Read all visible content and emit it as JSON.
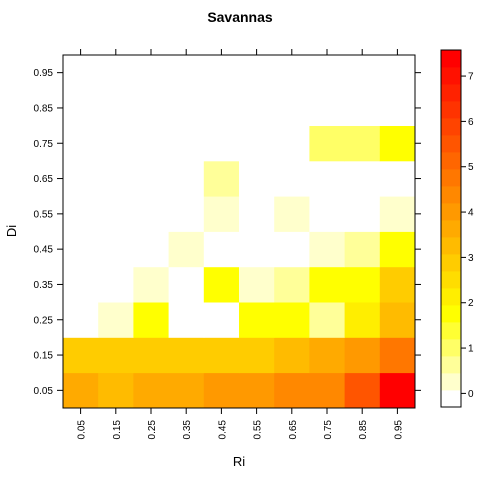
{
  "chart_data": {
    "type": "heatmap",
    "title": "Savannas",
    "xlabel": "Ri",
    "ylabel": "Di",
    "x": [
      0.05,
      0.15,
      0.25,
      0.35,
      0.45,
      0.55,
      0.65,
      0.75,
      0.85,
      0.95
    ],
    "y": [
      0.05,
      0.15,
      0.25,
      0.35,
      0.45,
      0.55,
      0.65,
      0.75,
      0.85,
      0.95
    ],
    "x_tick_labels": [
      "0.05",
      "0.15",
      "0.25",
      "0.35",
      "0.45",
      "0.55",
      "0.65",
      "0.75",
      "0.85",
      "0.95"
    ],
    "y_tick_labels": [
      "0.05",
      "0.15",
      "0.25",
      "0.35",
      "0.45",
      "0.55",
      "0.65",
      "0.75",
      "0.85",
      "0.95"
    ],
    "xlim": [
      0.0,
      1.0
    ],
    "ylim": [
      0.0,
      1.0
    ],
    "z": [
      [
        3.8,
        3.4,
        3.8,
        3.8,
        4.1,
        4.1,
        4.5,
        4.5,
        5.5,
        7.2
      ],
      [
        2.7,
        2.7,
        2.7,
        2.7,
        3.0,
        3.0,
        3.4,
        3.8,
        4.1,
        4.9
      ],
      [
        0,
        0.1,
        1.6,
        0.05,
        0.05,
        1.6,
        1.6,
        0.8,
        2.3,
        3.4
      ],
      [
        0,
        0,
        0.1,
        0,
        1.6,
        0.1,
        0.7,
        1.6,
        1.9,
        3.0
      ],
      [
        0,
        0,
        0,
        0.1,
        0.05,
        0,
        0,
        0.1,
        0.7,
        1.6
      ],
      [
        0,
        0,
        0,
        0,
        0.1,
        0.05,
        0.1,
        0.05,
        0.05,
        0.1
      ],
      [
        0,
        0,
        0,
        0,
        0.8,
        0,
        0,
        0.05,
        0,
        0
      ],
      [
        0,
        0,
        0,
        0,
        0,
        0,
        0,
        1.0,
        1.0,
        1.6
      ],
      [
        0,
        0,
        0,
        0,
        0,
        0,
        0,
        0.05,
        0,
        0.05
      ],
      [
        0,
        0,
        0,
        0,
        0,
        0,
        0,
        0,
        0,
        0
      ]
    ],
    "colorbar": {
      "ticks": [
        0,
        1,
        2,
        3,
        4,
        5,
        6,
        7
      ],
      "tick_labels": [
        "0",
        "1",
        "2",
        "3",
        "4",
        "5",
        "6",
        "7"
      ],
      "breaks": [
        -0.3,
        0.075,
        0.45,
        0.825,
        1.2,
        1.575,
        1.95,
        2.325,
        2.7,
        3.075,
        3.45,
        3.825,
        4.2,
        4.575,
        4.95,
        5.325,
        5.7,
        6.075,
        6.45,
        6.825,
        7.2,
        7.575
      ],
      "colors": [
        "#FFFFFF",
        "#FFFFCC",
        "#FFFF99",
        "#FFFF66",
        "#FFFF33",
        "#FFFF00",
        "#FFEE00",
        "#FFDD00",
        "#FFCC00",
        "#FFBB00",
        "#FFAA00",
        "#FF9900",
        "#FF8800",
        "#FF7700",
        "#FF6600",
        "#FF5500",
        "#FF4400",
        "#FF3300",
        "#FF2200",
        "#FF1100",
        "#FF0000"
      ]
    }
  }
}
